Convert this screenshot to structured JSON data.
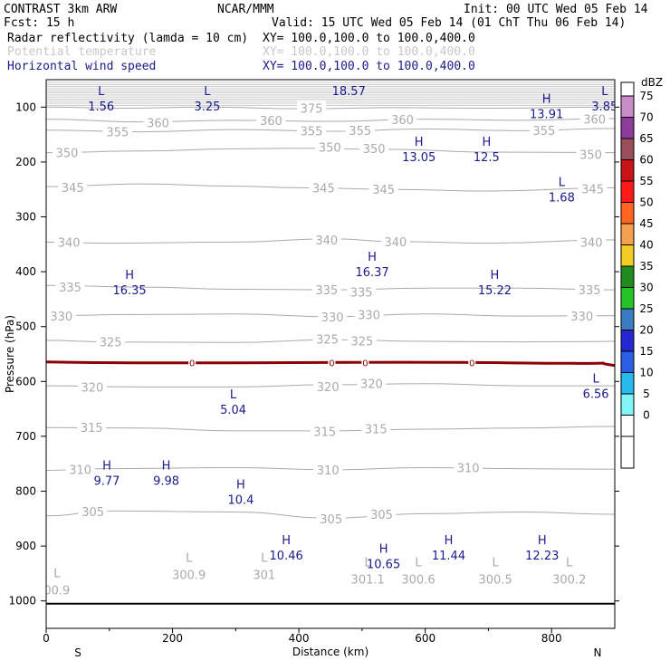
{
  "header": {
    "line1_left": "CONTRAST  3km ARW",
    "line1_center": "NCAR/MMM",
    "line1_right": "Init: 00 UTC Wed 05 Feb 14",
    "line2_left": "Fcst:   15 h",
    "line2_right": "Valid: 15 UTC Wed 05 Feb 14 (01 ChT Thu 06 Feb 14)",
    "fields": [
      {
        "name": "Radar reflectivity (lamda = 10 cm)",
        "xy": "XY= 100.0,100.0 to 100.0,400.0",
        "color": "#000000"
      },
      {
        "name": "Potential temperature",
        "xy": "XY= 100.0,100.0 to 100.0,400.0",
        "color": "#c8c8c8"
      },
      {
        "name": "Horizontal wind speed",
        "xy": "XY= 100.0,100.0 to 100.0,400.0",
        "color": "#1a1a8c"
      }
    ]
  },
  "chart_data": {
    "type": "cross-section contour",
    "xlabel": "Distance (km)",
    "ylabel": "Pressure (hPa)",
    "xlim": [
      0,
      900
    ],
    "ylim": [
      1050,
      50
    ],
    "xticks": [
      0,
      200,
      400,
      600,
      800
    ],
    "yticks": [
      100,
      200,
      300,
      400,
      500,
      600,
      700,
      800,
      900,
      1000
    ],
    "end_labels": {
      "left": "S",
      "right": "N"
    },
    "theta_contours": [
      {
        "level": 375,
        "points": [
          [
            0,
            100
          ],
          [
            120,
            102
          ],
          [
            260,
            100
          ],
          [
            400,
            103
          ],
          [
            560,
            101
          ],
          [
            700,
            102
          ],
          [
            900,
            100
          ]
        ],
        "labels": [
          [
            420,
            102
          ]
        ]
      },
      {
        "level": 360,
        "points": [
          [
            0,
            122
          ],
          [
            150,
            127
          ],
          [
            300,
            124
          ],
          [
            450,
            126
          ],
          [
            600,
            122
          ],
          [
            750,
            124
          ],
          [
            900,
            121
          ]
        ],
        "labels": [
          [
            177,
            128
          ],
          [
            356,
            124
          ],
          [
            564,
            123
          ],
          [
            868,
            122
          ]
        ]
      },
      {
        "level": 355,
        "points": [
          [
            0,
            142
          ],
          [
            150,
            145
          ],
          [
            300,
            141
          ],
          [
            450,
            144
          ],
          [
            600,
            140
          ],
          [
            750,
            143
          ],
          [
            900,
            139
          ]
        ],
        "labels": [
          [
            113,
            145
          ],
          [
            420,
            143
          ],
          [
            497,
            142
          ],
          [
            788,
            142
          ]
        ]
      },
      {
        "level": 350,
        "points": [
          [
            0,
            183
          ],
          [
            150,
            180
          ],
          [
            300,
            176
          ],
          [
            400,
            175
          ],
          [
            550,
            177
          ],
          [
            700,
            182
          ],
          [
            900,
            183
          ]
        ],
        "labels": [
          [
            33,
            183
          ],
          [
            449,
            173
          ],
          [
            519,
            175
          ],
          [
            862,
            186
          ]
        ]
      },
      {
        "level": 345,
        "points": [
          [
            0,
            245
          ],
          [
            150,
            240
          ],
          [
            300,
            244
          ],
          [
            400,
            247
          ],
          [
            550,
            250
          ],
          [
            700,
            253
          ],
          [
            900,
            247
          ]
        ],
        "labels": [
          [
            42,
            246
          ],
          [
            439,
            247
          ],
          [
            534,
            250
          ],
          [
            865,
            249
          ]
        ]
      },
      {
        "level": 340,
        "points": [
          [
            0,
            346
          ],
          [
            100,
            348
          ],
          [
            300,
            346
          ],
          [
            450,
            340
          ],
          [
            550,
            345
          ],
          [
            700,
            348
          ],
          [
            900,
            342
          ]
        ],
        "labels": [
          [
            36,
            346
          ],
          [
            444,
            342
          ],
          [
            553,
            345
          ],
          [
            863,
            346
          ]
        ]
      },
      {
        "level": 335,
        "points": [
          [
            0,
            425
          ],
          [
            150,
            428
          ],
          [
            300,
            432
          ],
          [
            450,
            433
          ],
          [
            600,
            430
          ],
          [
            750,
            430
          ],
          [
            900,
            433
          ]
        ],
        "labels": [
          [
            38,
            428
          ],
          [
            444,
            433
          ],
          [
            499,
            437
          ],
          [
            860,
            433
          ]
        ]
      },
      {
        "level": 330,
        "points": [
          [
            0,
            480
          ],
          [
            150,
            478
          ],
          [
            300,
            477
          ],
          [
            450,
            482
          ],
          [
            600,
            477
          ],
          [
            750,
            481
          ],
          [
            900,
            480
          ]
        ],
        "labels": [
          [
            24,
            481
          ],
          [
            453,
            482
          ],
          [
            511,
            478
          ],
          [
            848,
            481
          ]
        ]
      },
      {
        "level": 325,
        "points": [
          [
            0,
            525
          ],
          [
            100,
            528
          ],
          [
            300,
            529
          ],
          [
            450,
            524
          ],
          [
            600,
            527
          ],
          [
            750,
            528
          ],
          [
            900,
            527
          ]
        ],
        "labels": [
          [
            102,
            528
          ],
          [
            445,
            523
          ],
          [
            500,
            526
          ]
        ]
      },
      {
        "level": 320,
        "points": [
          [
            0,
            608
          ],
          [
            150,
            610
          ],
          [
            300,
            610
          ],
          [
            450,
            606
          ],
          [
            600,
            604
          ],
          [
            750,
            608
          ],
          [
            900,
            608
          ]
        ],
        "labels": [
          [
            73,
            610
          ],
          [
            446,
            609
          ],
          [
            515,
            604
          ]
        ]
      },
      {
        "level": 315,
        "points": [
          [
            0,
            684
          ],
          [
            150,
            685
          ],
          [
            300,
            690
          ],
          [
            450,
            690
          ],
          [
            600,
            687
          ],
          [
            750,
            685
          ],
          [
            900,
            682
          ]
        ],
        "labels": [
          [
            72,
            684
          ],
          [
            441,
            691
          ],
          [
            522,
            686
          ]
        ]
      },
      {
        "level": 310,
        "points": [
          [
            0,
            762
          ],
          [
            100,
            759
          ],
          [
            300,
            757
          ],
          [
            450,
            761
          ],
          [
            600,
            757
          ],
          [
            750,
            759
          ],
          [
            900,
            760
          ]
        ],
        "labels": [
          [
            54,
            760
          ],
          [
            446,
            761
          ],
          [
            668,
            757
          ]
        ]
      },
      {
        "level": 305,
        "points": [
          [
            0,
            845
          ],
          [
            100,
            836
          ],
          [
            300,
            838
          ],
          [
            450,
            849
          ],
          [
            600,
            841
          ],
          [
            750,
            838
          ],
          [
            900,
            842
          ]
        ],
        "labels": [
          [
            74,
            837
          ],
          [
            451,
            850
          ],
          [
            531,
            842
          ]
        ]
      }
    ],
    "theta_extrema": [
      {
        "type": "L",
        "value": "300.9",
        "x": 226,
        "p": 952
      },
      {
        "type": "L",
        "value": "301",
        "x": 345,
        "p": 952
      },
      {
        "type": "L",
        "value": "301.1",
        "x": 509,
        "p": 960
      },
      {
        "type": "L",
        "value": "300.6",
        "x": 589,
        "p": 960
      },
      {
        "type": "L",
        "value": "300.5",
        "x": 711,
        "p": 960
      },
      {
        "type": "L",
        "value": "300.2",
        "x": 828,
        "p": 960
      },
      {
        "type": "L",
        "value": "00.9",
        "x": 17,
        "p": 980
      }
    ],
    "freezing_level": {
      "label": "0",
      "p": 566,
      "marks_x": [
        231,
        452,
        505,
        674
      ]
    },
    "wind_extrema": [
      {
        "type": "L",
        "value": "1.56",
        "x": 87,
        "p": 98
      },
      {
        "type": "L",
        "value": "3.25",
        "x": 255,
        "p": 98
      },
      {
        "type": "H",
        "value": "18.57",
        "x": 479,
        "p": 70
      },
      {
        "type": "L",
        "value": "3.85",
        "x": 884,
        "p": 98
      },
      {
        "type": "H",
        "value": "13.91",
        "x": 792,
        "p": 112
      },
      {
        "type": "H",
        "value": "13.05",
        "x": 590,
        "p": 190
      },
      {
        "type": "H",
        "value": "12.5",
        "x": 697,
        "p": 190
      },
      {
        "type": "L",
        "value": "1.68",
        "x": 816,
        "p": 264
      },
      {
        "type": "H",
        "value": "16.37",
        "x": 516,
        "p": 400
      },
      {
        "type": "H",
        "value": "16.35",
        "x": 132,
        "p": 433
      },
      {
        "type": "H",
        "value": "15.22",
        "x": 710,
        "p": 433
      },
      {
        "type": "L",
        "value": "6.56",
        "x": 870,
        "p": 622
      },
      {
        "type": "L",
        "value": "5.04",
        "x": 296,
        "p": 651
      },
      {
        "type": "H",
        "value": "9.77",
        "x": 96,
        "p": 780
      },
      {
        "type": "H",
        "value": "9.98",
        "x": 190,
        "p": 780
      },
      {
        "type": "H",
        "value": "10.4",
        "x": 308,
        "p": 815
      },
      {
        "type": "H",
        "value": "10.46",
        "x": 380,
        "p": 916
      },
      {
        "type": "H",
        "value": "10.65",
        "x": 534,
        "p": 932
      },
      {
        "type": "H",
        "value": "11.44",
        "x": 637,
        "p": 916
      },
      {
        "type": "H",
        "value": "12.23",
        "x": 785,
        "p": 916
      }
    ],
    "colorbar": {
      "unit": "dBZ",
      "levels": [
        0,
        5,
        10,
        15,
        20,
        25,
        30,
        35,
        40,
        45,
        50,
        55,
        60,
        65,
        70,
        75
      ],
      "colors": [
        "#ffffff",
        "#7ff5f8",
        "#26b9ed",
        "#2a5fe6",
        "#2528d0",
        "#3a7cc0",
        "#26c326",
        "#1e8c1e",
        "#f2cd24",
        "#f5a050",
        "#ff6420",
        "#ff1a1a",
        "#c81414",
        "#9b4e5a",
        "#8c3c9b",
        "#c88cc8"
      ]
    }
  }
}
